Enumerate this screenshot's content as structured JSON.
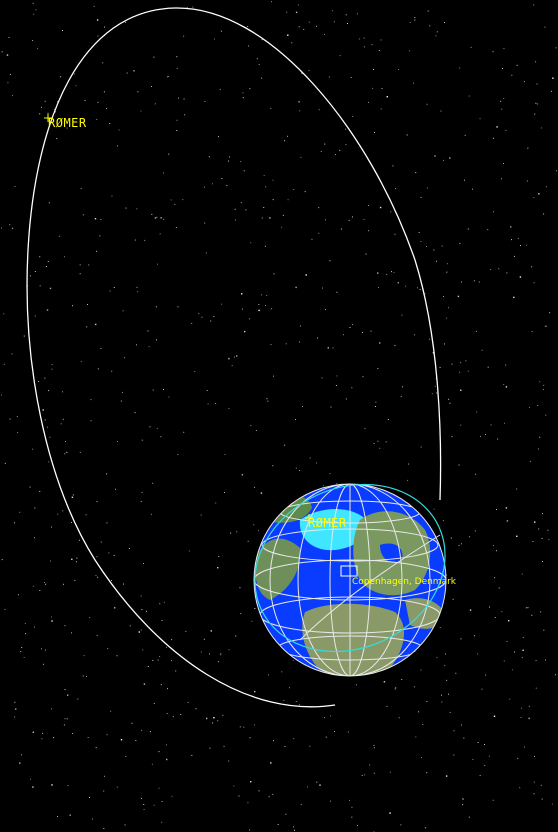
{
  "view": {
    "background_color": "#000000",
    "orbit_color": "#ffffff",
    "label_color": "#ffff00",
    "footprint_color": "#33dddd"
  },
  "satellite": {
    "label": "RØMER",
    "ground_track_label": "RØMER"
  },
  "ground_station": {
    "label": "Copenhagen, Denmark"
  },
  "globe": {
    "ocean_color": "#0a3cff",
    "land_color": "#6f8f5a",
    "grid_color": "#e8e8e8",
    "ice_color": "#40e6ff"
  }
}
